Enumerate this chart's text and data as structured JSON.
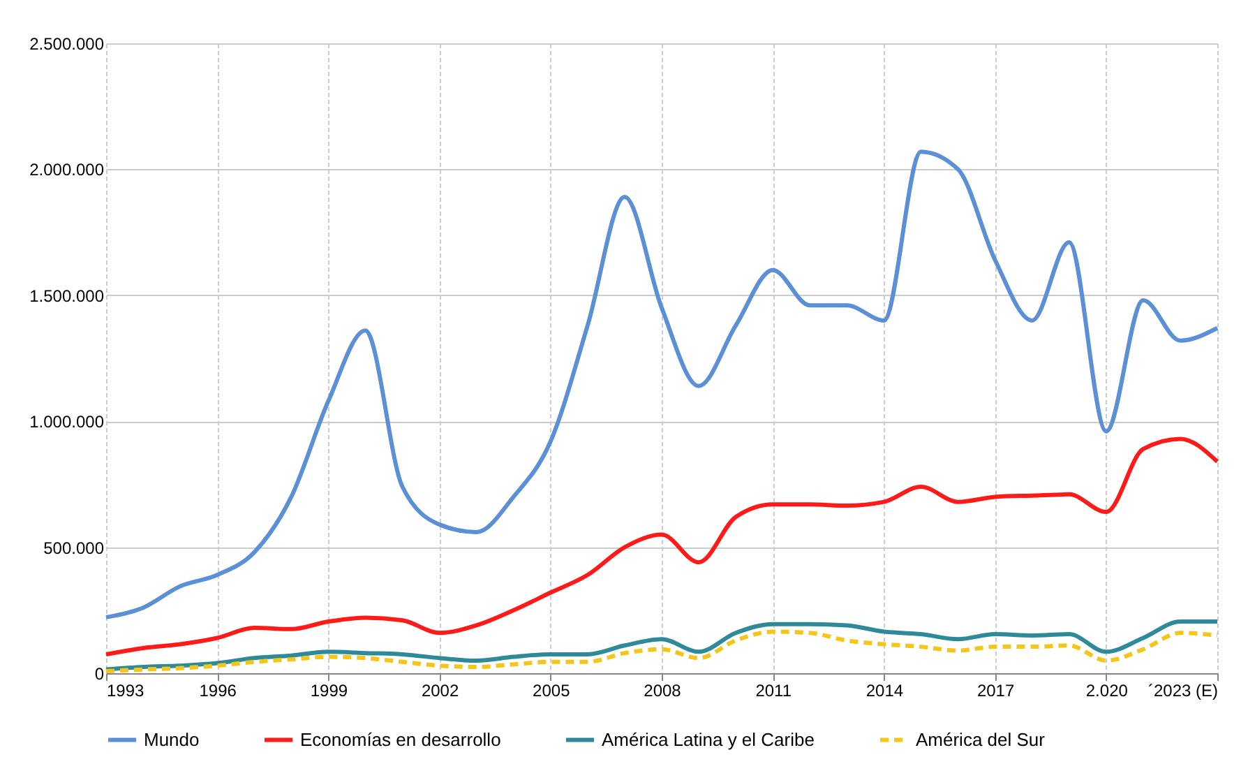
{
  "chart_data": {
    "type": "line",
    "x": [
      1993,
      1994,
      1995,
      1996,
      1997,
      1998,
      1999,
      2000,
      2001,
      2002,
      2003,
      2004,
      2005,
      2006,
      2007,
      2008,
      2009,
      2010,
      2011,
      2012,
      2013,
      2014,
      2015,
      2016,
      2017,
      2018,
      2019,
      2020,
      2021,
      2022,
      2023
    ],
    "series": [
      {
        "name": "Mundo",
        "color": "#5b8fd6",
        "line_style": "solid",
        "values": [
          222000,
          260000,
          345000,
          390000,
          480000,
          700000,
          1080000,
          1360000,
          740000,
          590000,
          560000,
          700000,
          920000,
          1380000,
          1890000,
          1450000,
          1140000,
          1380000,
          1600000,
          1460000,
          1460000,
          1400000,
          2070000,
          2000000,
          1640000,
          1400000,
          1710000,
          960000,
          1480000,
          1320000,
          1370000
        ]
      },
      {
        "name": "Economías en desarrollo",
        "color": "#ff1a1a",
        "line_style": "solid",
        "values": [
          75000,
          100000,
          115000,
          140000,
          180000,
          175000,
          205000,
          220000,
          210000,
          160000,
          190000,
          250000,
          320000,
          390000,
          500000,
          550000,
          440000,
          620000,
          670000,
          670000,
          665000,
          680000,
          740000,
          680000,
          700000,
          705000,
          710000,
          640000,
          890000,
          930000,
          840000
        ]
      },
      {
        "name": "América Latina y el Caribe",
        "color": "#2e8a99",
        "line_style": "solid",
        "values": [
          15000,
          25000,
          30000,
          40000,
          60000,
          70000,
          85000,
          80000,
          75000,
          60000,
          50000,
          65000,
          75000,
          75000,
          110000,
          135000,
          85000,
          160000,
          195000,
          195000,
          190000,
          165000,
          155000,
          135000,
          155000,
          150000,
          155000,
          85000,
          140000,
          205000,
          205000
        ]
      },
      {
        "name": "América del Sur",
        "color": "#f5c518",
        "line_style": "dashed",
        "values": [
          8000,
          15000,
          20000,
          30000,
          45000,
          55000,
          65000,
          60000,
          45000,
          30000,
          25000,
          35000,
          45000,
          45000,
          80000,
          95000,
          60000,
          130000,
          165000,
          160000,
          130000,
          115000,
          105000,
          90000,
          105000,
          105000,
          110000,
          50000,
          95000,
          160000,
          150000
        ]
      }
    ],
    "xlim": [
      1993,
      2023
    ],
    "xticks": [
      1993,
      1996,
      1999,
      2002,
      2005,
      2008,
      2011,
      2014,
      2017,
      {
        "value": 2020,
        "label": "2.020"
      },
      {
        "value": 2023,
        "label": "´2023 (E)"
      }
    ],
    "ylim": [
      0,
      2500000
    ],
    "yticks": [
      0,
      {
        "value": 500000,
        "label": "500.000"
      },
      {
        "value": 1000000,
        "label": "1.000.000"
      },
      {
        "value": 1500000,
        "label": "1.500.000"
      },
      {
        "value": 2000000,
        "label": "2.000.000"
      },
      {
        "value": 2500000,
        "label": "2.500.000"
      }
    ],
    "grid": true,
    "legend": "bottom",
    "marker": "none"
  }
}
